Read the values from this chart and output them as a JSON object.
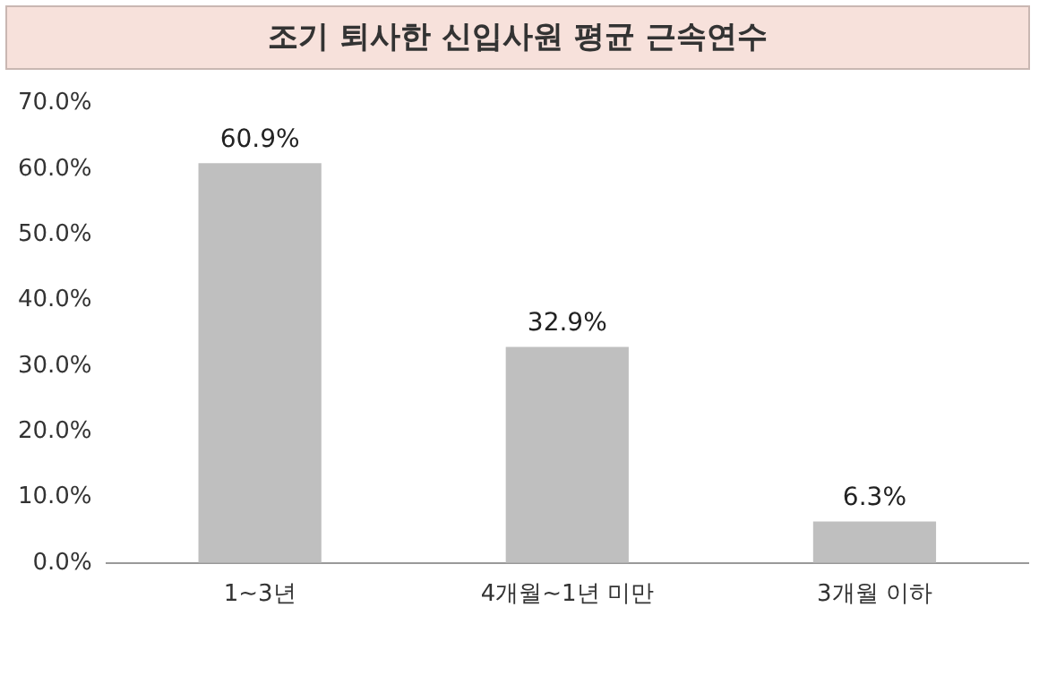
{
  "chart_data": {
    "type": "bar",
    "title": "조기 퇴사한 신입사원 평균 근속연수",
    "categories": [
      "1~3년",
      "4개월~1년 미만",
      "3개월 이하"
    ],
    "values": [
      60.9,
      32.9,
      6.3
    ],
    "color": "#bfbfbf",
    "value_labels": [
      "60.9%",
      "32.9%",
      "6.3%"
    ],
    "ylim": [
      0,
      70
    ],
    "yticks": [
      {
        "value": 0,
        "label": "0.0%"
      },
      {
        "value": 10,
        "label": "10.0%"
      },
      {
        "value": 20,
        "label": "20.0%"
      },
      {
        "value": 30,
        "label": "30.0%"
      },
      {
        "value": 40,
        "label": "40.0%"
      },
      {
        "value": 50,
        "label": "50.0%"
      },
      {
        "value": 60,
        "label": "60.0%"
      },
      {
        "value": 70,
        "label": "70.0%"
      }
    ],
    "grid": false,
    "legend": false
  }
}
